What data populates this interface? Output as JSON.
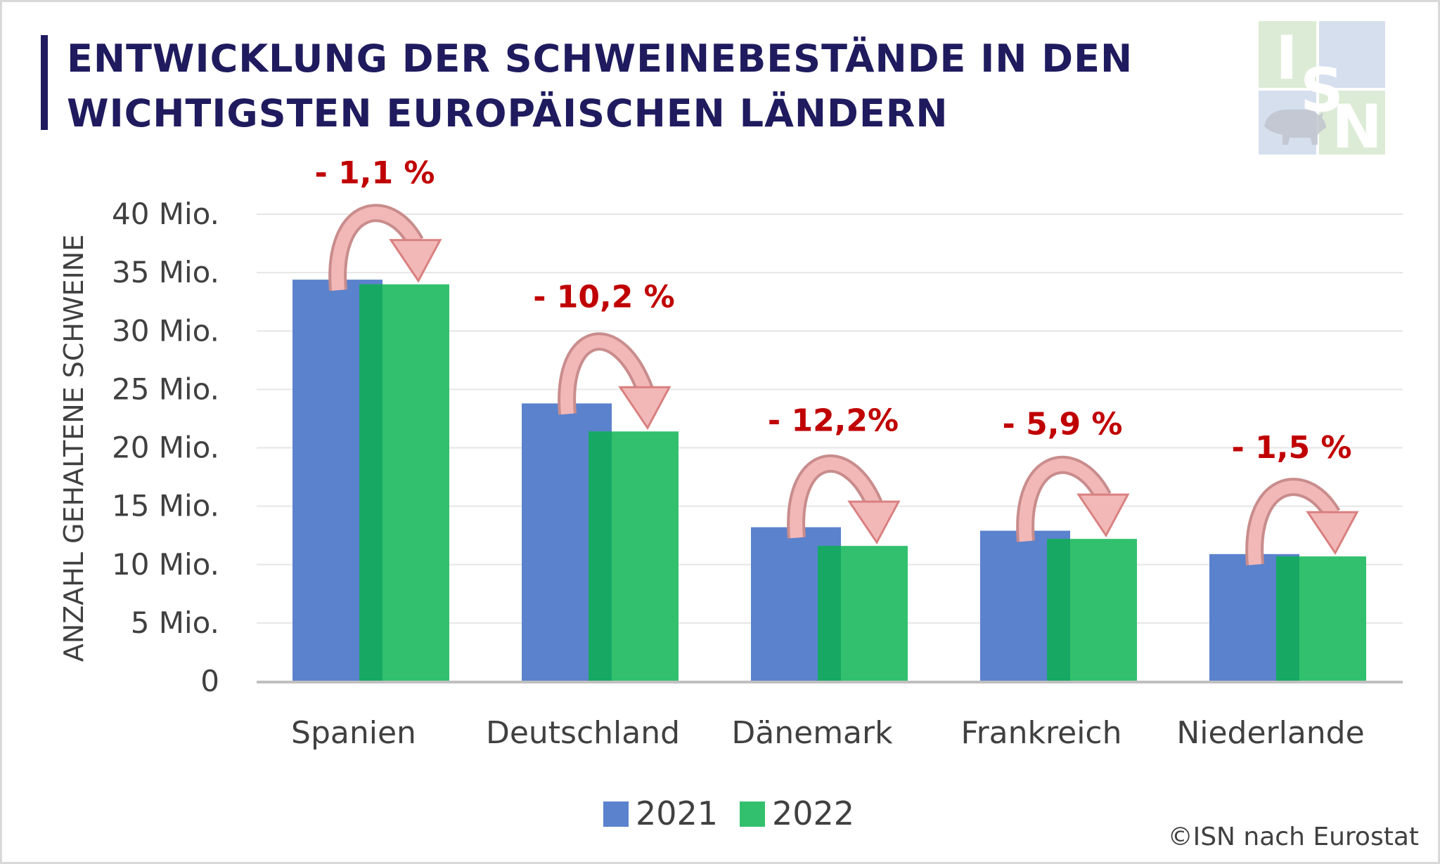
{
  "title_line1": "ENTWICKLUNG DER SCHWEINEBESTÄNDE IN DEN",
  "title_line2": "WICHTIGSTEN EUROPÄISCHEN LÄNDERN",
  "logo_text": [
    "I",
    "S",
    "N"
  ],
  "source": "©ISN nach Eurostat",
  "colors": {
    "series_2021": "#5b82cc",
    "series_2022": "#33c06e",
    "overlap": "#17a864",
    "change_label": "#c00000",
    "title": "#1f1b5e"
  },
  "chart_data": {
    "type": "bar",
    "title": "ENTWICKLUNG DER SCHWEINEBESTÄNDE IN DEN WICHTIGSTEN EUROPÄISCHEN LÄNDERN",
    "ylabel": "ANZAHL GEHALTENE SCHWEINE",
    "xlabel": "",
    "ylim": [
      0,
      40
    ],
    "yticks": [
      "0",
      "5 Mio.",
      "10 Mio.",
      "15 Mio.",
      "20 Mio.",
      "25 Mio.",
      "30 Mio.",
      "35 Mio.",
      "40 Mio."
    ],
    "categories": [
      "Spanien",
      "Deutschland",
      "Dänemark",
      "Frankreich",
      "Niederlande"
    ],
    "series": [
      {
        "name": "2021",
        "values": [
          34.4,
          23.8,
          13.2,
          12.9,
          10.9
        ]
      },
      {
        "name": "2022",
        "values": [
          34.0,
          21.4,
          11.6,
          12.2,
          10.7
        ]
      }
    ],
    "change_labels": [
      "- 1,1 %",
      "- 10,2 %",
      "- 12,2%",
      "- 5,9 %",
      "- 1,5 %"
    ],
    "grid": true,
    "legend_position": "bottom"
  }
}
